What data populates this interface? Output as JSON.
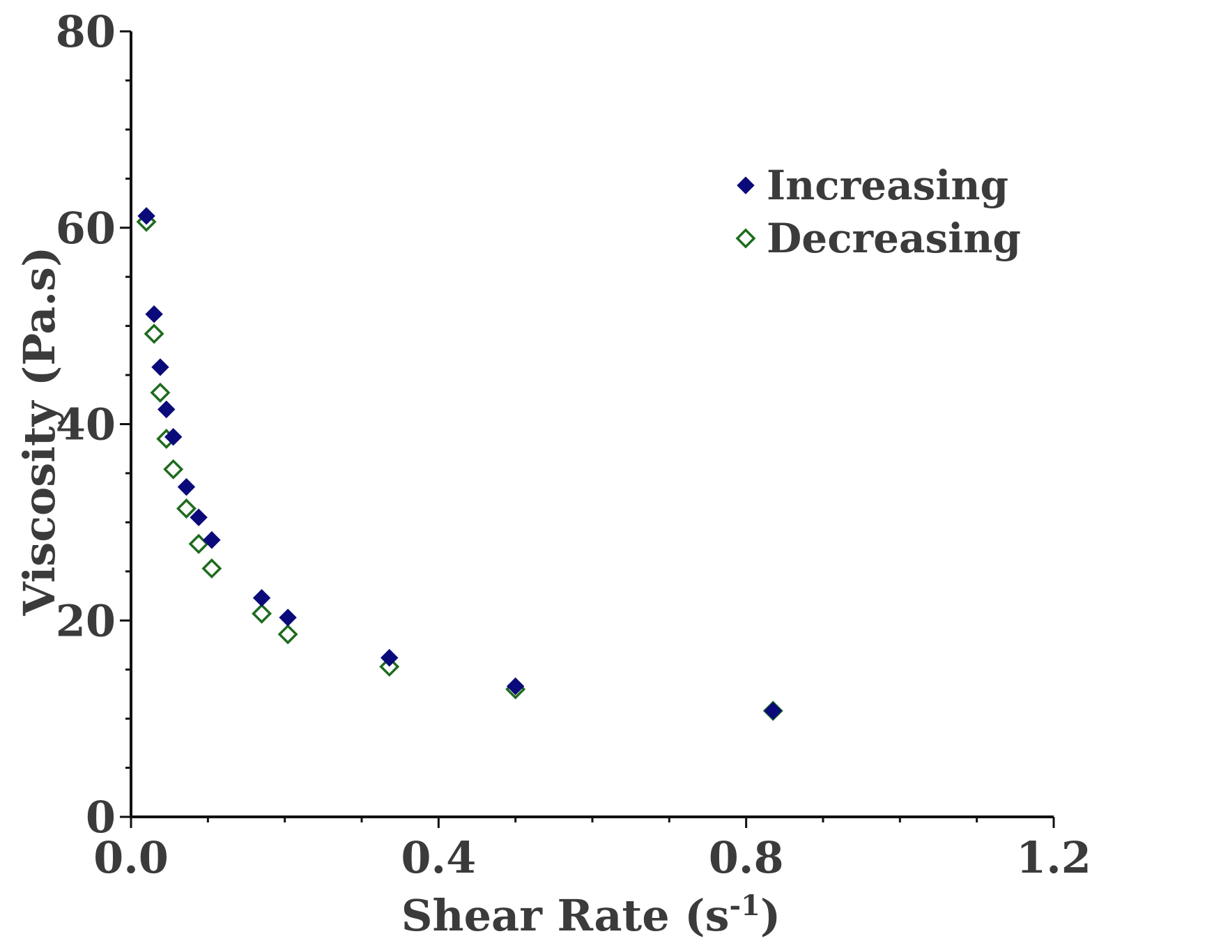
{
  "chart_data": {
    "type": "scatter",
    "title": "",
    "xlabel": "Shear Rate (s",
    "xlabel_superscript": "-1",
    "xlabel_suffix": ")",
    "ylabel": "Viscosity (Pa.s)",
    "xlim": [
      0,
      1.2
    ],
    "ylim": [
      0,
      80
    ],
    "x_ticks": [
      0.0,
      0.4,
      0.8,
      1.2
    ],
    "x_tick_labels": [
      "0.0",
      "0.4",
      "0.8",
      "1.2"
    ],
    "x_minor_step": 0.1,
    "y_ticks": [
      0,
      20,
      40,
      60,
      80
    ],
    "y_tick_labels": [
      "0",
      "20",
      "40",
      "60",
      "80"
    ],
    "y_minor_step": 5,
    "grid": false,
    "legend_position": "top-right",
    "series": [
      {
        "name": "Increasing",
        "marker": "filled-diamond",
        "color": "#0a0a7a",
        "points": [
          [
            0.02,
            61.2
          ],
          [
            0.03,
            51.2
          ],
          [
            0.038,
            45.8
          ],
          [
            0.046,
            41.5
          ],
          [
            0.055,
            38.7
          ],
          [
            0.072,
            33.6
          ],
          [
            0.088,
            30.5
          ],
          [
            0.105,
            28.2
          ],
          [
            0.17,
            22.3
          ],
          [
            0.204,
            20.3
          ],
          [
            0.336,
            16.2
          ],
          [
            0.5,
            13.3
          ],
          [
            0.835,
            10.8
          ]
        ]
      },
      {
        "name": "Decreasing",
        "marker": "open-diamond",
        "color": "#1e6b1e",
        "points": [
          [
            0.02,
            60.6
          ],
          [
            0.03,
            49.2
          ],
          [
            0.038,
            43.2
          ],
          [
            0.046,
            38.5
          ],
          [
            0.055,
            35.4
          ],
          [
            0.072,
            31.4
          ],
          [
            0.088,
            27.8
          ],
          [
            0.105,
            25.3
          ],
          [
            0.17,
            20.7
          ],
          [
            0.204,
            18.6
          ],
          [
            0.336,
            15.3
          ],
          [
            0.5,
            13.0
          ],
          [
            0.835,
            10.8
          ]
        ]
      }
    ]
  }
}
